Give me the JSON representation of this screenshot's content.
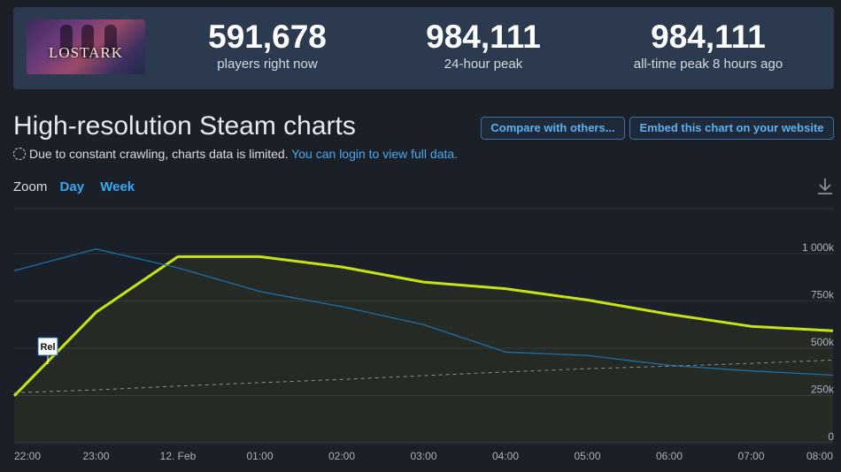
{
  "game": {
    "logo_text": "LOSTARK"
  },
  "stats": [
    {
      "value": "591,678",
      "label": "players right now"
    },
    {
      "value": "984,111",
      "label": "24-hour peak"
    },
    {
      "value": "984,111",
      "label": "all-time peak 8 hours ago"
    }
  ],
  "page": {
    "title": "High-resolution Steam charts",
    "compare_button": "Compare with others...",
    "embed_button": "Embed this chart on your website",
    "notice_text": "Due to constant crawling, charts data is limited.",
    "notice_link": "You can login to view full data."
  },
  "zoom": {
    "label": "Zoom",
    "options": [
      "Day",
      "Week"
    ]
  },
  "colors": {
    "players": "#c6e414",
    "twitch": "#1d6fa8",
    "trend": "#8a8f98",
    "grid": "#2e333c",
    "link": "#4aa8ee"
  },
  "chart_data": {
    "type": "line",
    "x": [
      "22:00",
      "23:00",
      "12. Feb",
      "01:00",
      "02:00",
      "03:00",
      "04:00",
      "05:00",
      "06:00",
      "07:00",
      "08:00"
    ],
    "ylim": [
      0,
      1000000
    ],
    "yticks": [
      "0",
      "250k",
      "500k",
      "750k",
      "1 000k"
    ],
    "series": [
      {
        "values": [
          248000,
          690000,
          984000,
          984000,
          930000,
          850000,
          815000,
          755000,
          680000,
          616000,
          592000
        ]
      },
      {
        "values": [
          910000,
          1025000,
          925000,
          800000,
          720000,
          625000,
          480000,
          462000,
          410000,
          380000,
          358000
        ]
      },
      {
        "values": [
          265000,
          280000,
          300000,
          318000,
          335000,
          355000,
          375000,
          392000,
          405000,
          420000,
          438000
        ]
      }
    ],
    "annotations": [
      {
        "x": "22:00",
        "label": "Rel"
      }
    ]
  }
}
